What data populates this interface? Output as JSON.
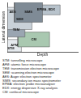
{
  "chart_data": {
    "type": "regions",
    "x_label": "Depth",
    "y_label": "Lateral dimension",
    "xlim": [
      0,
      10
    ],
    "ylim": [
      0,
      10
    ],
    "xticks": [],
    "yticks": [],
    "tick_labels": false,
    "grid": false,
    "regions": [
      {
        "name": "SIMS",
        "color": "#7f8b96",
        "x": [
          1,
          5
        ],
        "y": [
          6,
          10
        ]
      },
      {
        "name": "SEM",
        "color": "#c9d1d8",
        "x": [
          0,
          3.5
        ],
        "y": [
          4.5,
          8.5
        ]
      },
      {
        "name": "EPMA, EDX",
        "color": "#b8c3cc",
        "x": [
          3.5,
          7.5
        ],
        "y": [
          7.5,
          9.5
        ]
      },
      {
        "name": "AES",
        "color": "#dde3e8",
        "x": [
          0,
          1.5
        ],
        "y": [
          7,
          9
        ]
      },
      {
        "name": "TEM",
        "color": "#9aa5b1",
        "x": [
          0,
          2.5
        ],
        "y": [
          3,
          6
        ]
      },
      {
        "name": "CM",
        "color": "#a9c8b0",
        "x": [
          1.5,
          6
        ],
        "y": [
          1,
          4
        ]
      },
      {
        "name": "AFM",
        "color": "#e6eaee",
        "x": [
          0,
          2
        ],
        "y": [
          0,
          2.5
        ]
      },
      {
        "name": "STM",
        "color": "#8e9aa6",
        "x": [
          0,
          1
        ],
        "y": [
          0,
          1.5
        ]
      }
    ],
    "key": [
      "STM: tunnelling microscope",
      "AFM: atomic force microscope",
      "TEM: transmission electron microscope",
      "SEM: scanning electron microscope",
      "AES: Auger electron spectrometer",
      "SIMS: secondary ion mass spectrometer",
      "EPMA: electron probe microanalyser",
      "EDX: energy dispersive X-ray analysis",
      "CM: confocal microscope"
    ]
  }
}
